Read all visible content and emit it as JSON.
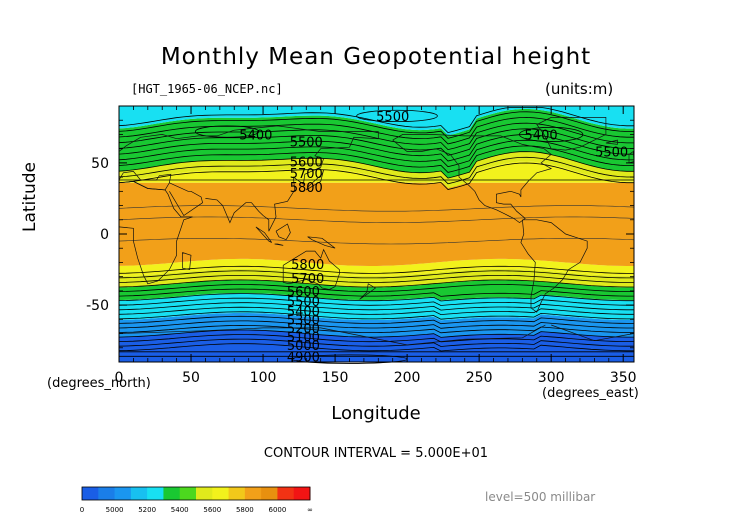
{
  "chart_data": {
    "type": "contour",
    "title": "Monthly Mean Geopotential height",
    "file_label": "[HGT_1965-06_NCEP.nc]",
    "units_label": "(units:m)",
    "xlabel": "Longitude",
    "ylabel": "Latitude",
    "x_unit_label": "(degrees_east)",
    "y_unit_label": "(degrees_north)",
    "xlim": [
      0,
      357.5
    ],
    "ylim": [
      -90,
      90
    ],
    "x_ticks": [
      0,
      50,
      100,
      150,
      200,
      250,
      300,
      350
    ],
    "y_ticks": [
      -50,
      0,
      50
    ],
    "contour_interval_text": "CONTOUR INTERVAL = 5.000E+01",
    "level_text": "level=500 millibar",
    "bands": [
      {
        "from": -90,
        "to": -70,
        "level": 5000,
        "color": "#1a5ee6"
      },
      {
        "from": -70,
        "to": -58,
        "level": 5200,
        "color": "#1a96f0"
      },
      {
        "from": -58,
        "to": -44,
        "level": 5400,
        "color": "#18e0f2"
      },
      {
        "from": -44,
        "to": -35,
        "level": 5500,
        "color": "#19c832"
      },
      {
        "from": -35,
        "to": -27,
        "level": 5700,
        "color": "#e0ea1c"
      },
      {
        "from": -27,
        "to": -20,
        "level": 5800,
        "color": "#f2f21c"
      },
      {
        "from": -20,
        "to": 36,
        "level": 5850,
        "color": "#f2a019"
      },
      {
        "from": 36,
        "to": 43,
        "level": 5800,
        "color": "#f2f21c"
      },
      {
        "from": 43,
        "to": 50,
        "level": 5700,
        "color": "#e0ea1c"
      },
      {
        "from": 50,
        "to": 80,
        "level": 5500,
        "color": "#19c832"
      },
      {
        "from": 80,
        "to": 90,
        "level": 5400,
        "color": "#18e0f2"
      }
    ],
    "contour_labels": [
      {
        "text": "5500",
        "lon": 190,
        "lat": 83
      },
      {
        "text": "5400",
        "lon": 95,
        "lat": 70
      },
      {
        "text": "5400",
        "lon": 293,
        "lat": 70
      },
      {
        "text": "5500",
        "lon": 130,
        "lat": 65
      },
      {
        "text": "5500",
        "lon": 342,
        "lat": 58
      },
      {
        "text": "5600",
        "lon": 130,
        "lat": 51
      },
      {
        "text": "5700",
        "lon": 130,
        "lat": 43
      },
      {
        "text": "5800",
        "lon": 130,
        "lat": 33
      },
      {
        "text": "5800",
        "lon": 131,
        "lat": -21
      },
      {
        "text": "5700",
        "lon": 131,
        "lat": -31
      },
      {
        "text": "5600",
        "lon": 128,
        "lat": -40
      },
      {
        "text": "5500",
        "lon": 128,
        "lat": -47
      },
      {
        "text": "5400",
        "lon": 128,
        "lat": -54
      },
      {
        "text": "5300",
        "lon": 128,
        "lat": -60
      },
      {
        "text": "5200",
        "lon": 128,
        "lat": -66
      },
      {
        "text": "5100",
        "lon": 128,
        "lat": -72
      },
      {
        "text": "5000",
        "lon": 128,
        "lat": -78
      },
      {
        "text": "4900",
        "lon": 128,
        "lat": -86
      }
    ],
    "colorbar": {
      "ticks": [
        "0",
        "5000",
        "5200",
        "5400",
        "5600",
        "5800",
        "6000",
        "∞"
      ],
      "colors": [
        "#1a5ee6",
        "#1a7ee8",
        "#1a96f0",
        "#18c0f0",
        "#18e0f2",
        "#19c832",
        "#4cd81e",
        "#e0ea1c",
        "#f2f21c",
        "#f2c81a",
        "#f2a019",
        "#e8900f",
        "#f23214",
        "#f21414"
      ]
    }
  }
}
